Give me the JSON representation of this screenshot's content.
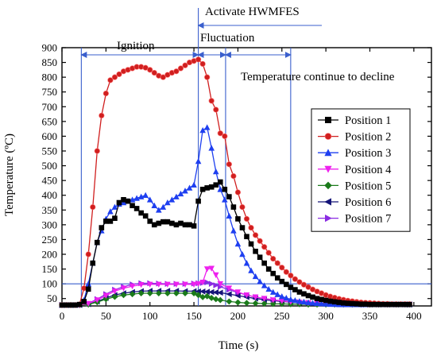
{
  "chart_data": {
    "type": "line",
    "xlabel": "Time (s)",
    "ylabel": "Temperature (ºC)",
    "xlim": [
      0,
      420
    ],
    "ylim": [
      25,
      900
    ],
    "xticks": [
      0,
      50,
      100,
      150,
      200,
      250,
      300,
      350,
      400
    ],
    "yticks": [
      50,
      100,
      150,
      200,
      250,
      300,
      350,
      400,
      450,
      500,
      550,
      600,
      650,
      700,
      750,
      800,
      850,
      900
    ],
    "grid": false,
    "legend_position": "right",
    "annotations": {
      "activate": "Activate HWMFES",
      "ignition": "Ignition",
      "fluctuation": "Fluctuation",
      "decline": "Temperature continue to decline"
    },
    "reference_lines": {
      "vertical_x": [
        22,
        155,
        186,
        260
      ],
      "horizontal_y": [
        100
      ]
    },
    "series": [
      {
        "name": "Position 1",
        "color": "#000000",
        "marker": "square",
        "x": [
          0,
          5,
          10,
          15,
          20,
          25,
          30,
          35,
          40,
          45,
          50,
          55,
          60,
          65,
          70,
          75,
          80,
          85,
          90,
          95,
          100,
          105,
          110,
          115,
          120,
          125,
          130,
          135,
          140,
          145,
          150,
          155,
          160,
          165,
          170,
          175,
          180,
          185,
          190,
          195,
          200,
          205,
          210,
          215,
          220,
          225,
          230,
          235,
          240,
          245,
          250,
          255,
          260,
          265,
          270,
          275,
          280,
          285,
          290,
          295,
          300,
          305,
          310,
          315,
          320,
          325,
          330,
          335,
          340,
          345,
          350,
          355,
          360,
          365,
          370,
          375,
          380,
          385,
          390,
          395
        ],
        "y": [
          28,
          28,
          28,
          28,
          30,
          40,
          82,
          170,
          240,
          290,
          312,
          312,
          322,
          375,
          385,
          380,
          365,
          355,
          340,
          330,
          312,
          300,
          305,
          310,
          310,
          305,
          300,
          305,
          300,
          300,
          296,
          380,
          420,
          425,
          428,
          435,
          445,
          420,
          395,
          360,
          320,
          290,
          260,
          235,
          210,
          190,
          170,
          150,
          135,
          120,
          108,
          98,
          88,
          80,
          72,
          66,
          60,
          55,
          50,
          47,
          44,
          41,
          39,
          37,
          35,
          34,
          33,
          32,
          31,
          31,
          30,
          30,
          30,
          30,
          30,
          30,
          30,
          30,
          30,
          30
        ]
      },
      {
        "name": "Position 2",
        "color": "#d01f1f",
        "marker": "circle",
        "x": [
          0,
          5,
          10,
          15,
          20,
          25,
          30,
          35,
          40,
          45,
          50,
          55,
          60,
          65,
          70,
          75,
          80,
          85,
          90,
          95,
          100,
          105,
          110,
          115,
          120,
          125,
          130,
          135,
          140,
          145,
          150,
          155,
          160,
          165,
          170,
          175,
          180,
          185,
          190,
          195,
          200,
          205,
          210,
          215,
          220,
          225,
          230,
          235,
          240,
          245,
          250,
          255,
          260,
          265,
          270,
          275,
          280,
          285,
          290,
          295,
          300,
          305,
          310,
          315,
          320,
          325,
          330,
          335,
          340,
          345,
          350,
          355,
          360,
          365,
          370,
          375,
          380,
          385,
          390,
          395
        ],
        "y": [
          28,
          28,
          28,
          28,
          30,
          85,
          200,
          360,
          550,
          670,
          745,
          790,
          800,
          810,
          820,
          825,
          830,
          835,
          835,
          832,
          825,
          815,
          805,
          800,
          808,
          815,
          820,
          830,
          840,
          850,
          855,
          860,
          845,
          800,
          720,
          690,
          610,
          600,
          505,
          465,
          410,
          360,
          320,
          290,
          265,
          245,
          225,
          205,
          185,
          170,
          155,
          140,
          128,
          116,
          106,
          97,
          89,
          81,
          74,
          68,
          62,
          57,
          53,
          49,
          46,
          43,
          41,
          39,
          37,
          36,
          35,
          34,
          33,
          32,
          32,
          31,
          31,
          31,
          31,
          31
        ]
      },
      {
        "name": "Position 3",
        "color": "#1e3ff0",
        "marker": "triangle-up",
        "x": [
          0,
          5,
          10,
          15,
          20,
          25,
          30,
          35,
          40,
          45,
          50,
          55,
          60,
          65,
          70,
          75,
          80,
          85,
          90,
          95,
          100,
          105,
          110,
          115,
          120,
          125,
          130,
          135,
          140,
          145,
          150,
          155,
          160,
          165,
          170,
          175,
          180,
          185,
          190,
          195,
          200,
          205,
          210,
          215,
          220,
          225,
          230,
          235,
          240,
          245,
          250,
          255,
          260,
          265,
          270,
          275,
          280,
          285,
          290,
          295,
          300,
          305,
          310,
          315,
          320,
          325,
          330,
          335,
          340,
          345,
          350,
          355,
          360,
          365,
          370,
          375,
          380,
          385,
          390,
          395
        ],
        "y": [
          28,
          28,
          28,
          28,
          30,
          45,
          100,
          170,
          240,
          280,
          320,
          345,
          360,
          370,
          375,
          380,
          385,
          390,
          395,
          400,
          385,
          365,
          350,
          360,
          375,
          385,
          395,
          405,
          415,
          425,
          435,
          515,
          620,
          630,
          560,
          480,
          420,
          385,
          330,
          280,
          235,
          200,
          170,
          145,
          125,
          108,
          94,
          82,
          72,
          64,
          57,
          52,
          47,
          44,
          41,
          39,
          37,
          35,
          34,
          33,
          32,
          31,
          31,
          30,
          30,
          30,
          30,
          30,
          30,
          30,
          30,
          30,
          30,
          30,
          30,
          30,
          30,
          30,
          30,
          30
        ]
      },
      {
        "name": "Position 4",
        "color": "#ee21ee",
        "marker": "triangle-down",
        "x": [
          0,
          10,
          20,
          30,
          40,
          50,
          60,
          70,
          80,
          90,
          100,
          110,
          120,
          130,
          140,
          150,
          155,
          160,
          165,
          170,
          175,
          180,
          190,
          200,
          210,
          220,
          230,
          240,
          250,
          260,
          270,
          280,
          290,
          300,
          310,
          320,
          330,
          340,
          350,
          360,
          370,
          380,
          390,
          395
        ],
        "y": [
          28,
          28,
          28,
          33,
          45,
          60,
          75,
          85,
          92,
          97,
          98,
          98,
          98,
          98,
          98,
          98,
          100,
          105,
          150,
          152,
          130,
          100,
          85,
          72,
          62,
          55,
          50,
          45,
          42,
          39,
          37,
          35,
          34,
          33,
          32,
          31,
          31,
          30,
          30,
          30,
          30,
          30,
          30,
          30
        ]
      },
      {
        "name": "Position 5",
        "color": "#1a7a1a",
        "marker": "diamond",
        "x": [
          0,
          10,
          20,
          30,
          40,
          50,
          60,
          70,
          80,
          90,
          100,
          110,
          120,
          130,
          140,
          150,
          155,
          160,
          165,
          170,
          175,
          180,
          190,
          200,
          210,
          220,
          230,
          240,
          250,
          260,
          270,
          280,
          290,
          300,
          310,
          320,
          330,
          340,
          350,
          360,
          370,
          380,
          390,
          395
        ],
        "y": [
          28,
          28,
          28,
          30,
          38,
          48,
          56,
          62,
          65,
          68,
          68,
          68,
          68,
          68,
          68,
          68,
          62,
          55,
          58,
          52,
          48,
          45,
          40,
          37,
          35,
          34,
          33,
          32,
          32,
          31,
          31,
          30,
          30,
          30,
          30,
          30,
          30,
          30,
          30,
          30,
          30,
          30,
          30,
          30
        ]
      },
      {
        "name": "Position 6",
        "color": "#141478",
        "marker": "triangle-left",
        "x": [
          0,
          10,
          20,
          30,
          40,
          50,
          60,
          70,
          80,
          90,
          100,
          110,
          120,
          130,
          140,
          150,
          155,
          160,
          165,
          170,
          175,
          180,
          190,
          200,
          210,
          220,
          230,
          240,
          250,
          260,
          270,
          280,
          290,
          300,
          310,
          320,
          330,
          340,
          350,
          360,
          370,
          380,
          390,
          395
        ],
        "y": [
          28,
          28,
          28,
          31,
          40,
          52,
          62,
          68,
          72,
          75,
          76,
          76,
          76,
          76,
          75,
          75,
          74,
          74,
          73,
          72,
          71,
          70,
          65,
          60,
          55,
          50,
          46,
          43,
          40,
          38,
          36,
          35,
          34,
          33,
          32,
          31,
          31,
          30,
          30,
          30,
          30,
          30,
          30,
          30
        ]
      },
      {
        "name": "Position 7",
        "color": "#8a2be2",
        "marker": "triangle-right",
        "x": [
          0,
          10,
          20,
          30,
          40,
          50,
          60,
          70,
          80,
          90,
          100,
          110,
          120,
          130,
          140,
          150,
          155,
          160,
          165,
          170,
          175,
          180,
          190,
          200,
          210,
          220,
          230,
          240,
          250,
          260,
          270,
          280,
          290,
          300,
          310,
          320,
          330,
          340,
          350,
          360,
          370,
          380,
          390,
          395
        ],
        "y": [
          28,
          28,
          28,
          34,
          48,
          65,
          80,
          90,
          98,
          102,
          102,
          101,
          100,
          100,
          100,
          101,
          102,
          103,
          105,
          100,
          95,
          90,
          80,
          70,
          62,
          55,
          50,
          46,
          42,
          40,
          38,
          36,
          35,
          34,
          33,
          32,
          31,
          31,
          30,
          30,
          30,
          30,
          30,
          30
        ]
      }
    ]
  }
}
